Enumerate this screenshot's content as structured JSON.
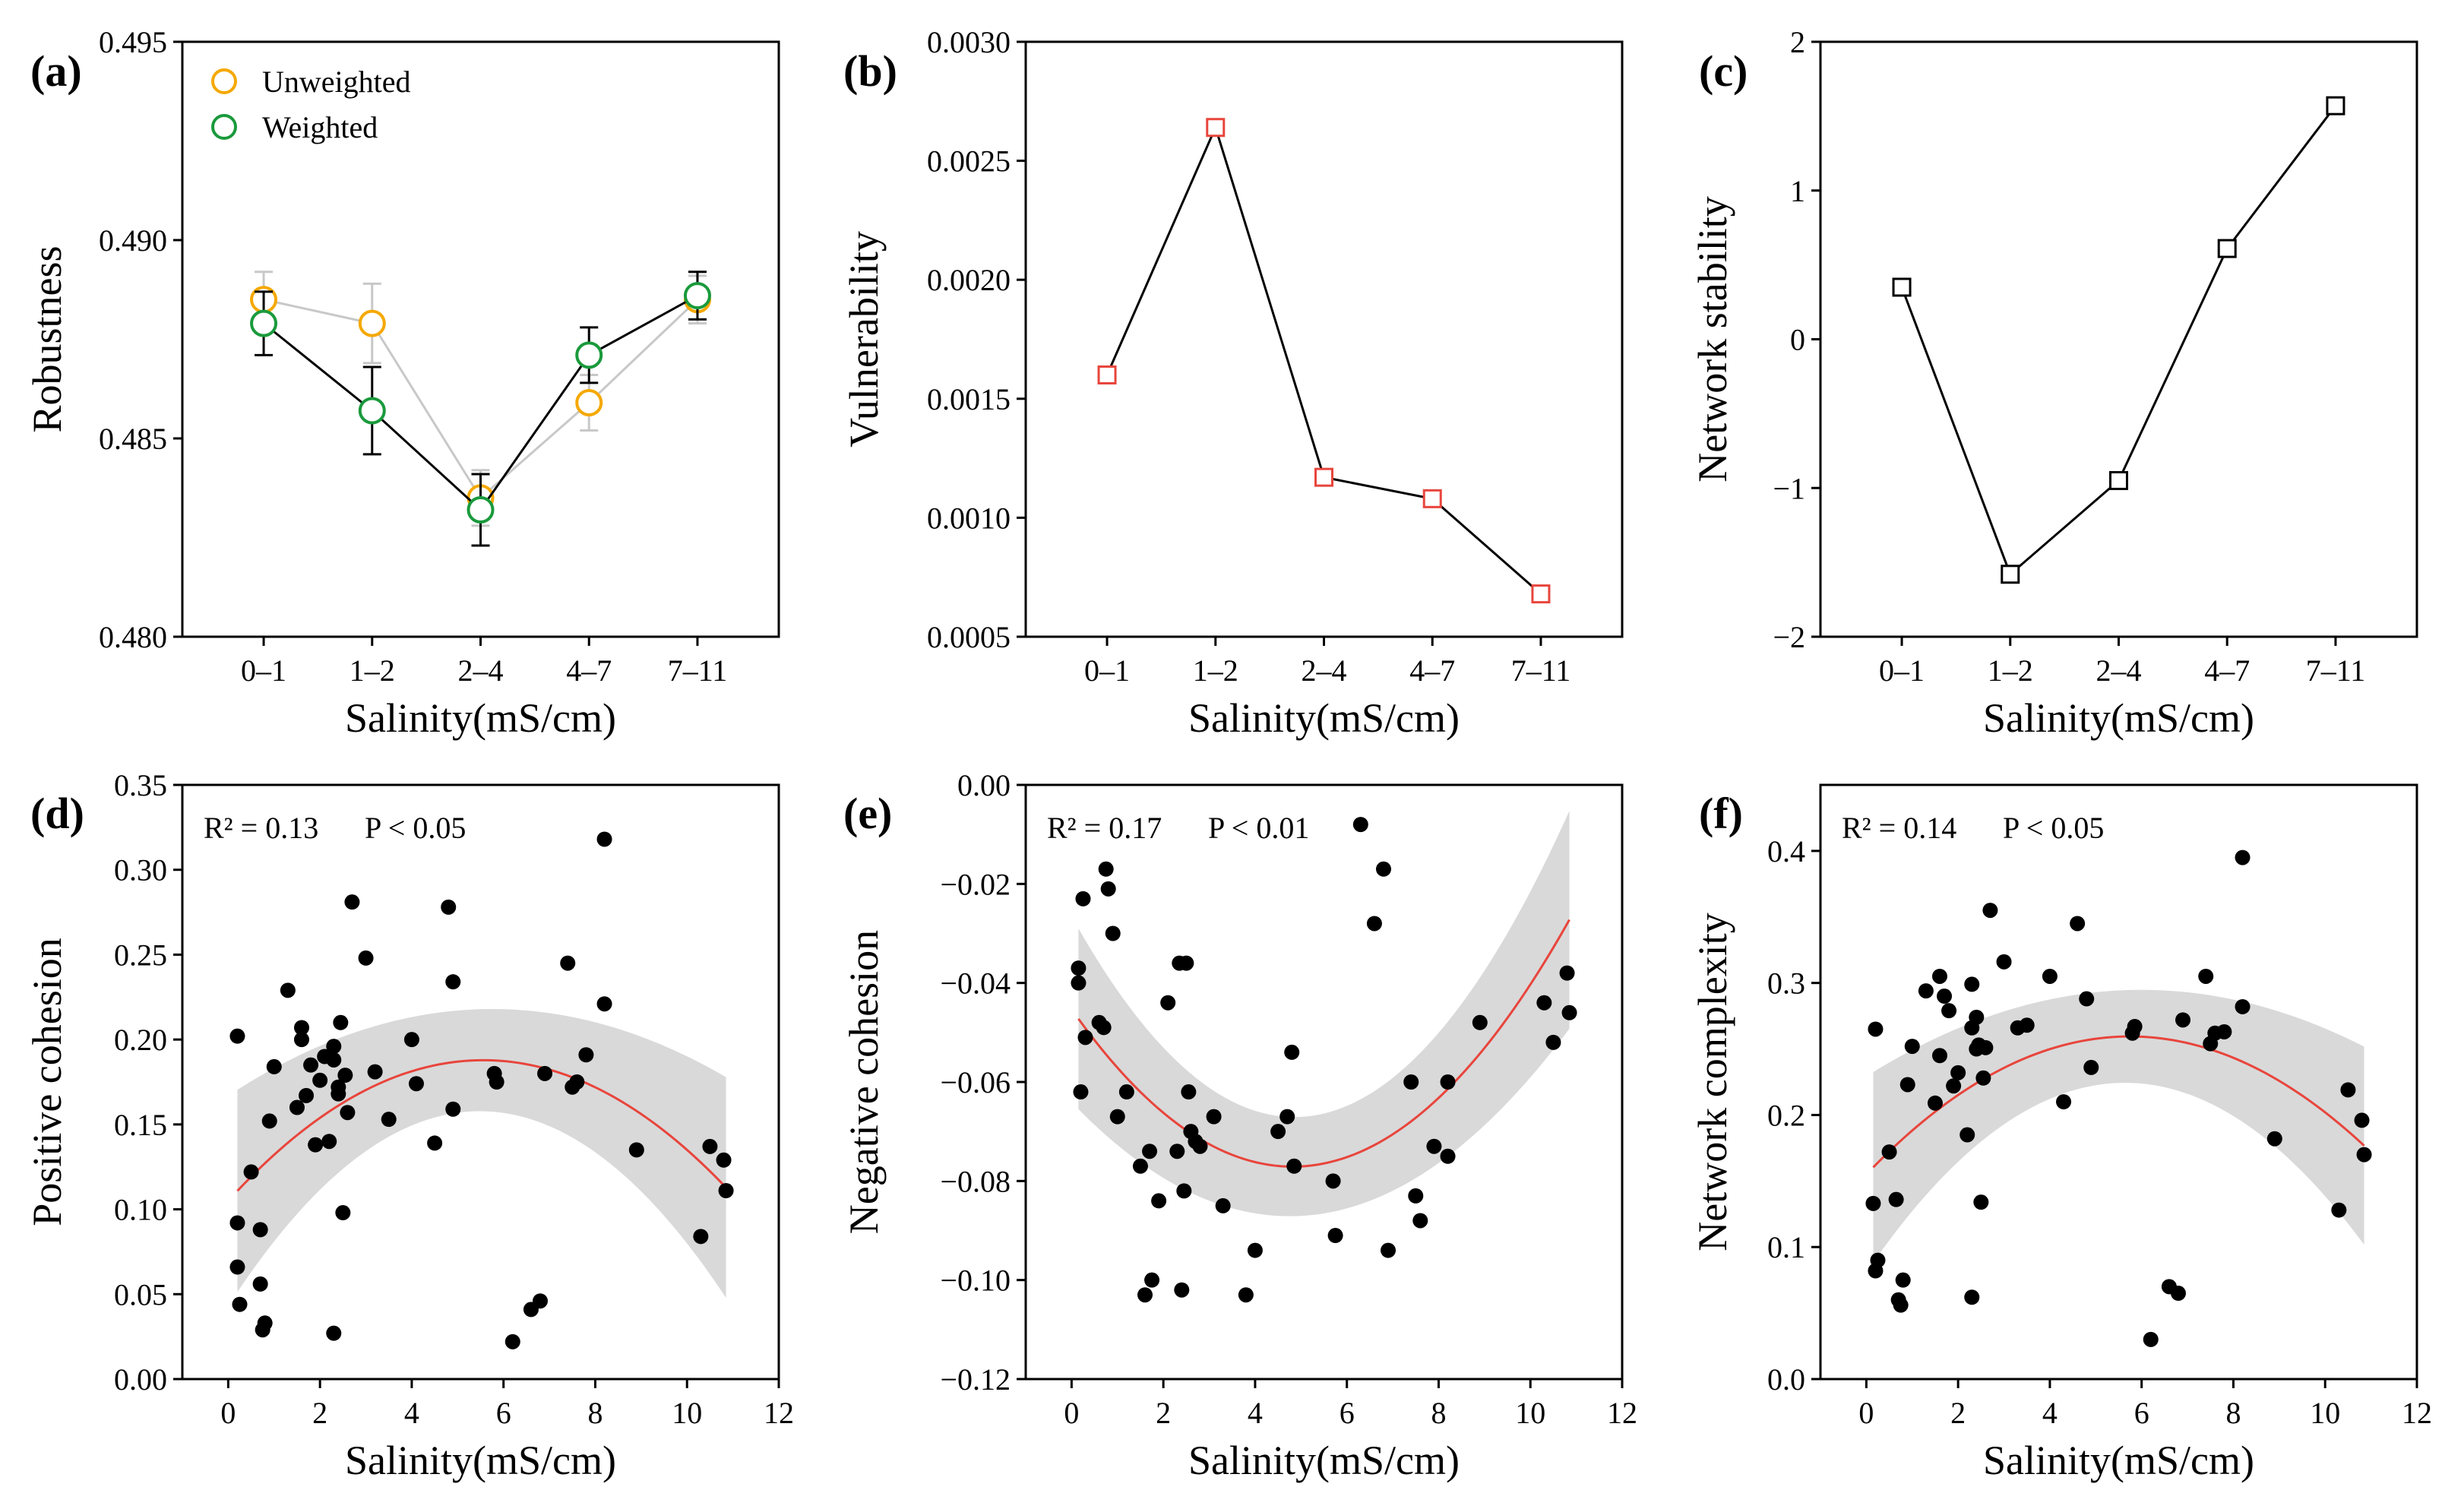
{
  "chart_data": [
    {
      "id": "a",
      "panel_label": "(a)",
      "type": "line",
      "categories": [
        "0–1",
        "1–2",
        "2–4",
        "4–7",
        "7–11"
      ],
      "series": [
        {
          "name": "Unweighted",
          "color": "#F5A800",
          "line_color": "#C8C8C8",
          "values": [
            0.4885,
            0.4879,
            0.4835,
            0.4859,
            0.4885
          ],
          "err": [
            0.0007,
            0.001,
            0.0007,
            0.0007,
            0.0006
          ]
        },
        {
          "name": "Weighted",
          "color": "#1A9A3C",
          "line_color": "#000000",
          "values": [
            0.4879,
            0.4857,
            0.4832,
            0.4871,
            0.4886
          ],
          "err": [
            0.0008,
            0.0011,
            0.0009,
            0.0007,
            0.0006
          ]
        }
      ],
      "ylim": [
        0.48,
        0.495
      ],
      "yticks": [
        0.48,
        0.485,
        0.49,
        0.495
      ],
      "ytick_labels": [
        "0.480",
        "0.485",
        "0.490",
        "0.495"
      ],
      "xlabel": "Salinity(mS/cm)",
      "ylabel": "Robustness",
      "legend": "top-left"
    },
    {
      "id": "b",
      "panel_label": "(b)",
      "type": "line",
      "categories": [
        "0–1",
        "1–2",
        "2–4",
        "4–7",
        "7–11"
      ],
      "series": [
        {
          "name": "Vulnerability",
          "color": "#E8453C",
          "line_color": "#000000",
          "values": [
            0.0016,
            0.00264,
            0.00117,
            0.00108,
            0.00068
          ]
        }
      ],
      "ylim": [
        0.0005,
        0.003
      ],
      "yticks": [
        0.0005,
        0.001,
        0.0015,
        0.002,
        0.0025,
        0.003
      ],
      "ytick_labels": [
        "0.0005",
        "0.0010",
        "0.0015",
        "0.0020",
        "0.0025",
        "0.0030"
      ],
      "xlabel": "Salinity(mS/cm)",
      "ylabel": "Vulnerability"
    },
    {
      "id": "c",
      "panel_label": "(c)",
      "type": "line",
      "categories": [
        "0–1",
        "1–2",
        "2–4",
        "4–7",
        "7–11"
      ],
      "series": [
        {
          "name": "Network stability",
          "color": "#000000",
          "line_color": "#000000",
          "values": [
            0.35,
            -1.58,
            -0.95,
            0.61,
            1.57
          ]
        }
      ],
      "ylim": [
        -2,
        2
      ],
      "yticks": [
        -2,
        -1,
        0,
        1,
        2
      ],
      "ytick_labels": [
        "−2",
        "−1",
        "0",
        "1",
        "2"
      ],
      "xlabel": "Salinity(mS/cm)",
      "ylabel": "Network stability"
    },
    {
      "id": "d",
      "panel_label": "(d)",
      "type": "scatter",
      "annotation_r2": "R² = 0.13",
      "annotation_p": "P < 0.05",
      "x": [
        0.2,
        0.2,
        0.2,
        0.25,
        0.5,
        0.7,
        0.7,
        0.75,
        0.8,
        0.9,
        1.0,
        1.3,
        1.5,
        1.6,
        1.6,
        1.7,
        1.8,
        1.9,
        2.0,
        2.1,
        2.2,
        2.3,
        2.3,
        2.3,
        2.4,
        2.4,
        2.45,
        2.5,
        2.55,
        2.6,
        2.7,
        3.0,
        3.2,
        3.5,
        4.0,
        4.1,
        4.5,
        4.8,
        4.9,
        4.9,
        5.8,
        5.85,
        6.2,
        6.6,
        6.8,
        6.9,
        7.4,
        7.5,
        7.6,
        7.8,
        8.2,
        8.2,
        8.9,
        10.3,
        10.5,
        10.8,
        10.85
      ],
      "y": [
        0.202,
        0.092,
        0.066,
        0.044,
        0.122,
        0.088,
        0.056,
        0.029,
        0.033,
        0.152,
        0.184,
        0.229,
        0.16,
        0.2,
        0.207,
        0.167,
        0.185,
        0.138,
        0.176,
        0.19,
        0.14,
        0.196,
        0.188,
        0.027,
        0.168,
        0.172,
        0.21,
        0.098,
        0.179,
        0.157,
        0.281,
        0.248,
        0.181,
        0.153,
        0.2,
        0.174,
        0.139,
        0.278,
        0.234,
        0.159,
        0.18,
        0.175,
        0.022,
        0.041,
        0.046,
        0.18,
        0.245,
        0.172,
        0.175,
        0.191,
        0.318,
        0.221,
        0.135,
        0.084,
        0.137,
        0.129,
        0.111
      ],
      "fit": {
        "type": "quadratic",
        "a": -0.00268,
        "b": 0.0298,
        "c": 0.105,
        "ci_half_min": 0.03,
        "ci_half_end": 0.065,
        "x_center": 5.3
      },
      "xlim": [
        -1,
        12
      ],
      "xticks": [
        0,
        2,
        4,
        6,
        8,
        10,
        12
      ],
      "xtick_labels": [
        "0",
        "2",
        "4",
        "6",
        "8",
        "10",
        "12"
      ],
      "ylim": [
        0,
        0.35
      ],
      "yticks": [
        0,
        0.05,
        0.1,
        0.15,
        0.2,
        0.25,
        0.3,
        0.35
      ],
      "ytick_labels": [
        "0.00",
        "0.05",
        "0.10",
        "0.15",
        "0.20",
        "0.25",
        "0.30",
        "0.35"
      ],
      "xlabel": "Salinity(mS/cm)",
      "ylabel": "Positive cohesion"
    },
    {
      "id": "e",
      "panel_label": "(e)",
      "type": "scatter",
      "annotation_r2": "R² = 0.17",
      "annotation_p": "P < 0.01",
      "x": [
        0.15,
        0.15,
        0.2,
        0.25,
        0.3,
        0.6,
        0.7,
        0.75,
        0.8,
        0.9,
        1.0,
        1.2,
        1.5,
        1.6,
        1.7,
        1.75,
        1.9,
        2.1,
        2.3,
        2.35,
        2.4,
        2.45,
        2.5,
        2.55,
        2.6,
        2.7,
        2.8,
        3.1,
        3.3,
        3.8,
        4.0,
        4.5,
        4.7,
        4.8,
        4.85,
        5.7,
        5.75,
        6.3,
        6.6,
        6.8,
        6.9,
        7.4,
        7.5,
        7.6,
        7.9,
        8.2,
        8.2,
        8.9,
        10.3,
        10.5,
        10.8,
        10.85
      ],
      "y": [
        -0.037,
        -0.04,
        -0.062,
        -0.023,
        -0.051,
        -0.048,
        -0.049,
        -0.017,
        -0.021,
        -0.03,
        -0.067,
        -0.062,
        -0.077,
        -0.103,
        -0.074,
        -0.1,
        -0.084,
        -0.044,
        -0.074,
        -0.036,
        -0.102,
        -0.082,
        -0.036,
        -0.062,
        -0.07,
        -0.072,
        -0.073,
        -0.067,
        -0.085,
        -0.103,
        -0.094,
        -0.07,
        -0.067,
        -0.054,
        -0.077,
        -0.08,
        -0.091,
        -0.008,
        -0.028,
        -0.017,
        -0.094,
        -0.06,
        -0.083,
        -0.088,
        -0.073,
        -0.06,
        -0.075,
        -0.048,
        -0.044,
        -0.052,
        -0.038,
        -0.046
      ],
      "fit": {
        "type": "quadratic",
        "a": 0.00137,
        "b": -0.0132,
        "c": -0.0453,
        "ci_half_min": 0.01,
        "ci_half_end": 0.022,
        "x_center": 5.0
      },
      "xlim": [
        -1,
        12
      ],
      "xticks": [
        0,
        2,
        4,
        6,
        8,
        10,
        12
      ],
      "xtick_labels": [
        "0",
        "2",
        "4",
        "6",
        "8",
        "10",
        "12"
      ],
      "ylim": [
        -0.12,
        0
      ],
      "yticks": [
        -0.12,
        -0.1,
        -0.08,
        -0.06,
        -0.04,
        -0.02,
        0
      ],
      "ytick_labels": [
        "−0.12",
        "−0.10",
        "−0.08",
        "−0.06",
        "−0.04",
        "−0.02",
        "0.00"
      ],
      "xlabel": "Salinity(mS/cm)",
      "ylabel": "Negative cohesion"
    },
    {
      "id": "f",
      "panel_label": "(f)",
      "type": "scatter",
      "annotation_r2": "R² = 0.14",
      "annotation_p": "P < 0.05",
      "x": [
        0.15,
        0.2,
        0.2,
        0.25,
        0.5,
        0.65,
        0.7,
        0.75,
        0.8,
        0.9,
        1.0,
        1.3,
        1.5,
        1.6,
        1.6,
        1.7,
        1.8,
        1.9,
        2.0,
        2.2,
        2.3,
        2.3,
        2.3,
        2.4,
        2.4,
        2.45,
        2.5,
        2.55,
        2.6,
        2.7,
        3.0,
        3.3,
        3.5,
        4.0,
        4.3,
        4.6,
        4.8,
        4.9,
        5.8,
        5.85,
        6.2,
        6.6,
        6.8,
        6.9,
        7.4,
        7.5,
        7.6,
        7.8,
        8.2,
        8.2,
        8.9,
        10.3,
        10.5,
        10.8,
        10.85
      ],
      "y": [
        0.133,
        0.265,
        0.082,
        0.09,
        0.172,
        0.136,
        0.06,
        0.056,
        0.075,
        0.223,
        0.252,
        0.294,
        0.209,
        0.245,
        0.305,
        0.29,
        0.279,
        0.222,
        0.232,
        0.185,
        0.266,
        0.299,
        0.062,
        0.25,
        0.274,
        0.253,
        0.134,
        0.228,
        0.251,
        0.355,
        0.316,
        0.266,
        0.268,
        0.305,
        0.21,
        0.345,
        0.288,
        0.236,
        0.262,
        0.267,
        0.03,
        0.07,
        0.065,
        0.272,
        0.305,
        0.254,
        0.262,
        0.263,
        0.395,
        0.282,
        0.182,
        0.128,
        0.219,
        0.196,
        0.17
      ],
      "fit": {
        "type": "quadratic",
        "a": -0.00317,
        "b": 0.0364,
        "c": 0.155,
        "ci_half_min": 0.035,
        "ci_half_end": 0.075,
        "x_center": 5.4
      },
      "xlim": [
        -1,
        12
      ],
      "xticks": [
        0,
        2,
        4,
        6,
        8,
        10,
        12
      ],
      "xtick_labels": [
        "0",
        "2",
        "4",
        "6",
        "8",
        "10",
        "12"
      ],
      "ylim": [
        0,
        0.45
      ],
      "yticks": [
        0,
        0.1,
        0.2,
        0.3,
        0.4
      ],
      "ytick_labels": [
        "0.0",
        "0.1",
        "0.2",
        "0.3",
        "0.4"
      ],
      "xlabel": "Salinity(mS/cm)",
      "ylabel": "Network complexity"
    }
  ],
  "styles": {
    "fit_line_color": "#E8453C",
    "ci_fill_color": "#D9D9D9",
    "point_color": "#000000"
  }
}
